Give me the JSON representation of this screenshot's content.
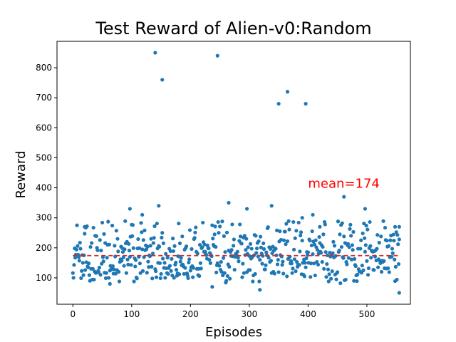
{
  "chart_data": {
    "type": "scatter",
    "title": "Test Reward of Alien-v0:Random",
    "xlabel": "Episodes",
    "ylabel": "Reward",
    "xlim": [
      -27,
      574
    ],
    "ylim": [
      12,
      888
    ],
    "xticks": [
      0,
      100,
      200,
      300,
      400,
      500
    ],
    "yticks": [
      100,
      200,
      300,
      400,
      500,
      600,
      700,
      800
    ],
    "grid": false,
    "colors": {
      "points": "#1f77b4",
      "mean_line": "#d62728",
      "annotation": "#ff0000"
    },
    "mean": {
      "value": 174,
      "label": "mean=174",
      "x_range": [
        0,
        556
      ]
    },
    "annotation": {
      "text": "mean=174",
      "x": 400,
      "y": 400
    },
    "highlight_points": [
      {
        "x": 140,
        "y": 850
      },
      {
        "x": 152,
        "y": 760
      },
      {
        "x": 246,
        "y": 840
      },
      {
        "x": 350,
        "y": 680
      },
      {
        "x": 365,
        "y": 720
      },
      {
        "x": 396,
        "y": 680
      },
      {
        "x": 461,
        "y": 370
      },
      {
        "x": 265,
        "y": 350
      },
      {
        "x": 146,
        "y": 340
      },
      {
        "x": 338,
        "y": 340
      },
      {
        "x": 296,
        "y": 330
      },
      {
        "x": 97,
        "y": 330
      },
      {
        "x": 497,
        "y": 330
      },
      {
        "x": 118,
        "y": 310
      },
      {
        "x": 408,
        "y": 310
      },
      {
        "x": 390,
        "y": 300
      },
      {
        "x": 555,
        "y": 270
      },
      {
        "x": 548,
        "y": 270
      },
      {
        "x": 555,
        "y": 50
      },
      {
        "x": 318,
        "y": 60
      },
      {
        "x": 237,
        "y": 70
      },
      {
        "x": 63,
        "y": 80
      },
      {
        "x": 420,
        "y": 270
      },
      {
        "x": 20,
        "y": 270
      }
    ],
    "n_points": 556,
    "baseline_values": [
      120,
      140,
      160,
      170,
      180,
      190,
      200,
      210,
      220,
      110,
      130,
      150,
      100,
      240,
      230,
      250,
      260,
      280,
      90,
      120,
      140,
      160,
      180,
      200,
      130,
      150,
      170,
      190,
      210,
      110
    ]
  }
}
